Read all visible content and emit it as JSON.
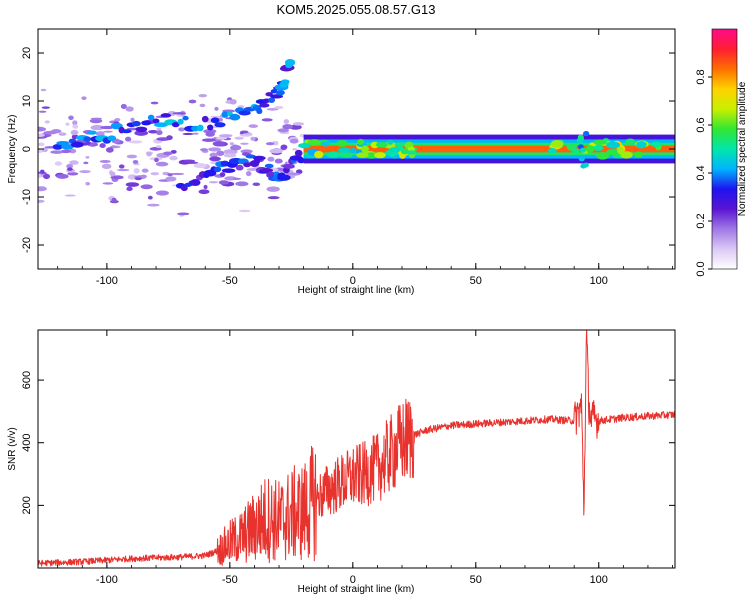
{
  "title": "KOM5.2025.055.08.57.G13",
  "colors": {
    "snr_line": "#e8322d",
    "frame": "#000000",
    "colormap": [
      "#ffffff",
      "#dcc8f5",
      "#a078e6",
      "#5a14d2",
      "#1e14f0",
      "#00b4ff",
      "#00e6aa",
      "#32e632",
      "#c8f000",
      "#ffd200",
      "#ff6e00",
      "#ff1e32",
      "#ff0a8c"
    ]
  },
  "chart_data": [
    {
      "type": "heatmap",
      "panel": "spectrogram",
      "xlabel": "Height of straight line (km)",
      "ylabel": "Frequency (Hz)",
      "xlim": [
        -128,
        131
      ],
      "ylim": [
        -25,
        25
      ],
      "xticks": [
        -100,
        -50,
        0,
        50,
        100
      ],
      "yticks": [
        -20,
        -10,
        0,
        10,
        20
      ],
      "xtick_labels": [
        "-100",
        "-50",
        "0",
        "50",
        "100"
      ],
      "ytick_labels": [
        "-20",
        "-10",
        "0",
        "10",
        "20"
      ],
      "colorbar": {
        "label": "Normalized spectral amplitude",
        "range": [
          0,
          1
        ],
        "ticks": [
          0.0,
          0.2,
          0.4,
          0.6,
          0.8
        ],
        "tick_labels": [
          "0.0",
          "0.2",
          "0.4",
          "0.6",
          "0.8"
        ]
      },
      "features": [
        {
          "kind": "scatter-blobs",
          "x_range": [
            -128,
            -20
          ],
          "y_range": [
            -22,
            22
          ],
          "amplitude": 0.15
        },
        {
          "kind": "track",
          "points": [
            [
              -120,
              1
            ],
            [
              -100,
              3
            ],
            [
              -80,
              6
            ],
            [
              -60,
              5
            ],
            [
              -40,
              8
            ],
            [
              -30,
              12
            ],
            [
              -25,
              18
            ]
          ],
          "amplitude": 0.35
        },
        {
          "kind": "track",
          "points": [
            [
              -70,
              -8
            ],
            [
              -55,
              -4
            ],
            [
              -40,
              -2
            ],
            [
              -30,
              -6
            ],
            [
              -20,
              -1
            ]
          ],
          "amplitude": 0.3
        },
        {
          "kind": "carrier",
          "x_range": [
            -20,
            131
          ],
          "y": 0,
          "amplitude": 0.9
        }
      ]
    },
    {
      "type": "line",
      "panel": "snr",
      "xlabel": "Height of straight line (km)",
      "ylabel": "SNR (v/v)",
      "xlim": [
        -128,
        131
      ],
      "ylim": [
        0,
        760
      ],
      "xticks": [
        -100,
        -50,
        0,
        50,
        100
      ],
      "yticks": [
        200,
        400,
        600
      ],
      "xtick_labels": [
        "-100",
        "-50",
        "0",
        "50",
        "100"
      ],
      "ytick_labels": [
        "200",
        "400",
        "600"
      ],
      "series": [
        {
          "x": [
            -128,
            -110,
            -90,
            -70,
            -60,
            -55,
            -50,
            -45,
            -40,
            -35,
            -30,
            -25,
            -20,
            -15,
            -10,
            -5,
            0,
            5,
            10,
            15,
            20,
            25,
            30,
            40,
            50,
            60,
            70,
            80,
            90,
            93,
            94,
            95,
            96,
            97,
            98,
            100,
            110,
            120,
            131
          ],
          "values": [
            15,
            20,
            30,
            35,
            40,
            55,
            80,
            100,
            130,
            160,
            150,
            170,
            180,
            220,
            250,
            270,
            290,
            300,
            320,
            360,
            400,
            425,
            440,
            455,
            460,
            465,
            470,
            475,
            470,
            520,
            180,
            750,
            520,
            470,
            480,
            470,
            480,
            485,
            490
          ]
        }
      ]
    }
  ]
}
